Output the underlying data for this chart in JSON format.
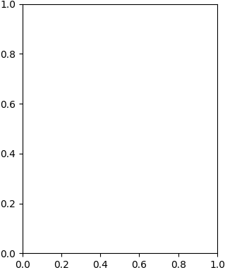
{
  "bg": "#ffffff",
  "lc": "#1a1a1a",
  "lw": 1.5,
  "lw_inner": 1.0,
  "figsize": [
    3.19,
    3.83
  ],
  "dpi": 100
}
